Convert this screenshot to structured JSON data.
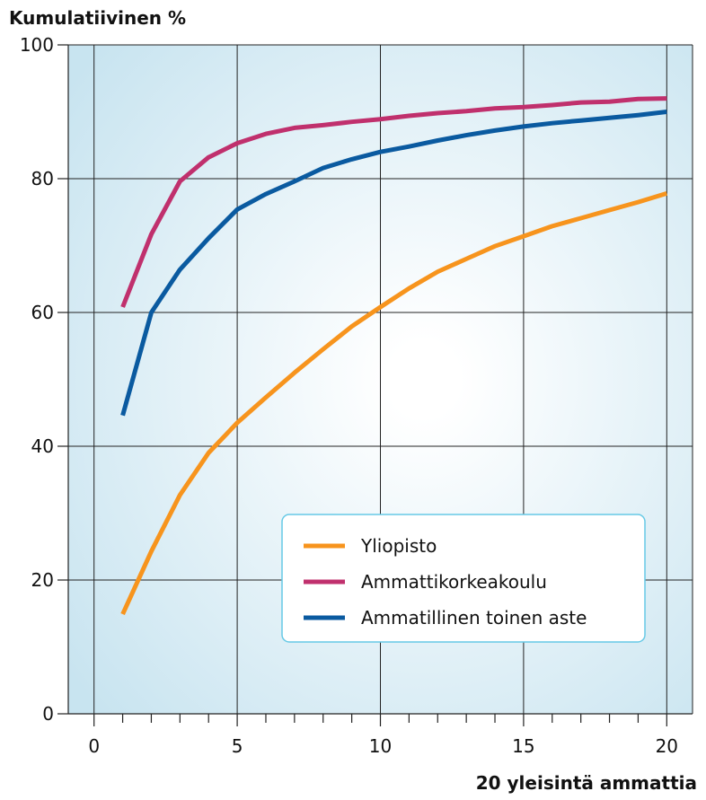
{
  "colors": {
    "plot_background": "#c8e4f0",
    "plot_center": "#ffffff",
    "grid": "#222222",
    "yliopisto": "#f7941d",
    "ammattikorkeakoulu": "#c0306d",
    "ammatillinen": "#0a5aa0",
    "legend_border": "#66c9e6"
  },
  "chart_data": {
    "type": "line",
    "title": "",
    "xlabel": "20 yleisintä ammattia",
    "ylabel": "Kumulatiivinen %",
    "xlim": [
      -0.9,
      20.9
    ],
    "ylim": [
      0,
      100
    ],
    "x_ticks": [
      "0",
      "5",
      "10",
      "15",
      "20"
    ],
    "y_ticks": [
      "0",
      "20",
      "40",
      "60",
      "80",
      "100"
    ],
    "grid": true,
    "legend_position": "lower-right",
    "x": [
      1,
      2,
      3,
      4,
      5,
      6,
      7,
      8,
      9,
      10,
      11,
      12,
      13,
      14,
      15,
      16,
      17,
      18,
      19,
      20
    ],
    "series": [
      {
        "name": "Yliopisto",
        "color_key": "yliopisto",
        "values": [
          14.9,
          24.3,
          32.7,
          39.0,
          43.5,
          47.3,
          51.0,
          54.5,
          57.9,
          60.8,
          63.6,
          66.1,
          68.0,
          69.9,
          71.4,
          72.9,
          74.1,
          75.3,
          76.5,
          77.8
        ]
      },
      {
        "name": "Ammattikorkeakoulu",
        "color_key": "ammattikorkeakoulu",
        "values": [
          60.8,
          71.7,
          79.6,
          83.2,
          85.3,
          86.7,
          87.6,
          88.0,
          88.5,
          88.9,
          89.4,
          89.8,
          90.1,
          90.5,
          90.7,
          91.0,
          91.4,
          91.5,
          91.9,
          92.0
        ]
      },
      {
        "name": "Ammatillinen toinen aste",
        "color_key": "ammatillinen",
        "values": [
          44.6,
          60.0,
          66.4,
          71.1,
          75.4,
          77.7,
          79.6,
          81.6,
          82.9,
          84.0,
          84.8,
          85.7,
          86.5,
          87.2,
          87.8,
          88.3,
          88.7,
          89.1,
          89.5,
          90.0
        ]
      }
    ]
  }
}
